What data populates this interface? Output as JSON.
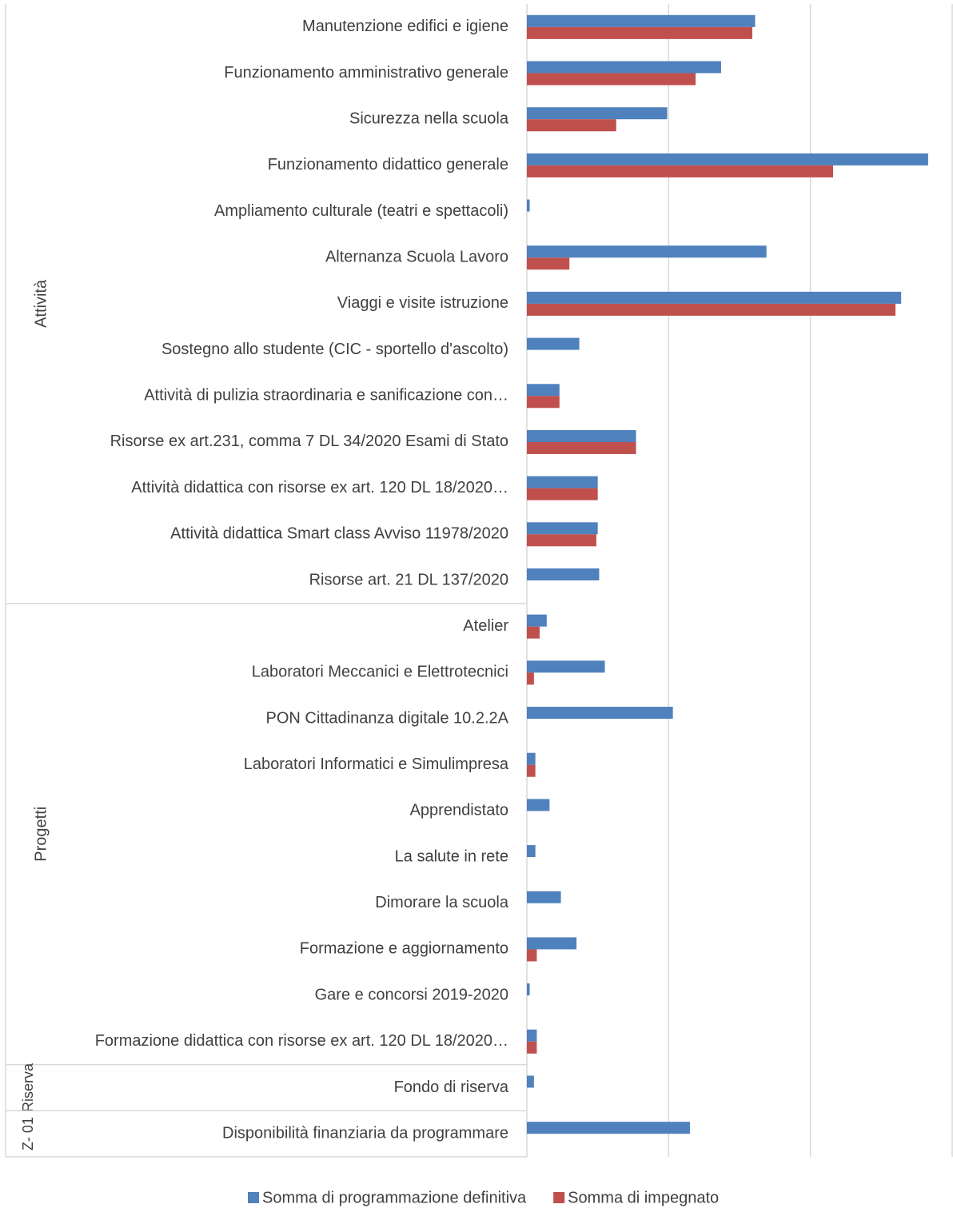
{
  "chart_data": {
    "type": "grouped-hbar",
    "groups": [
      {
        "label": "Attività",
        "categories": [
          "Manutenzione edifici e igiene",
          "Funzionamento amministrativo generale",
          "Sicurezza nella scuola",
          "Funzionamento didattico generale",
          "Ampliamento culturale (teatri e spettacoli)",
          "Alternanza Scuola Lavoro",
          "Viaggi e visite istruzione",
          "Sostegno allo studente (CIC - sportello d'ascolto)",
          "Attività di pulizia straordinaria e sanificazione con…",
          "Risorse ex art.231, comma 7 DL 34/2020 Esami di Stato",
          "Attività didattica con risorse ex art. 120 DL 18/2020…",
          "Attività didattica Smart class Avviso 11978/2020",
          "Risorse art. 21 DL 137/2020"
        ]
      },
      {
        "label": "Progetti",
        "categories": [
          "Atelier",
          "Laboratori Meccanici e Elettrotecnici",
          "PON Cittadinanza digitale 10.2.2A",
          "Laboratori Informatici e Simulimpresa",
          "Apprendistato",
          "La salute in rete",
          "Dimorare la scuola",
          "Formazione e aggiornamento",
          "Gare e concorsi 2019-2020",
          "Formazione didattica con risorse ex art. 120 DL 18/2020…"
        ]
      },
      {
        "label": "Riserva",
        "categories": [
          "Fondo di riserva"
        ]
      },
      {
        "label": "Z- 01",
        "categories": [
          "Disponibilità finanziaria da programmare"
        ]
      }
    ],
    "series": [
      {
        "name": "Somma di programmazione definitiva",
        "color": "#4f81bd",
        "values": [
          1.61,
          1.37,
          0.99,
          2.83,
          0.02,
          1.69,
          2.64,
          0.37,
          0.23,
          0.77,
          0.5,
          0.5,
          0.51,
          0.14,
          0.55,
          1.03,
          0.06,
          0.16,
          0.06,
          0.24,
          0.35,
          0.02,
          0.07,
          0.05,
          1.15
        ]
      },
      {
        "name": "Somma di impegnato",
        "color": "#c0504d",
        "values": [
          1.59,
          1.19,
          0.63,
          2.16,
          null,
          0.3,
          2.6,
          null,
          0.23,
          0.77,
          0.5,
          0.49,
          null,
          0.09,
          0.05,
          null,
          0.06,
          null,
          null,
          null,
          0.07,
          null,
          0.07,
          null,
          null
        ]
      }
    ],
    "xlim": [
      0,
      3
    ],
    "xticks": [
      0,
      1,
      2,
      3
    ],
    "grid": true,
    "legend": "bottom"
  }
}
